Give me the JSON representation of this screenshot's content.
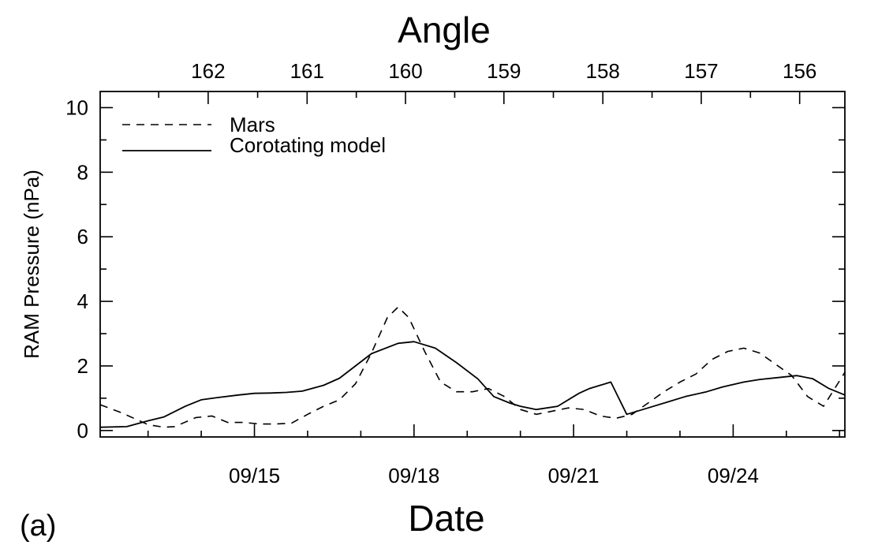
{
  "chart_data": {
    "type": "line",
    "panel_label": "(a)",
    "top_axis": {
      "title": "Angle",
      "ticks": [
        {
          "label": "162",
          "day": 14.13
        },
        {
          "label": "161",
          "day": 15.99
        },
        {
          "label": "160",
          "day": 17.84
        },
        {
          "label": "159",
          "day": 19.69
        },
        {
          "label": "158",
          "day": 21.55
        },
        {
          "label": "157",
          "day": 23.4
        },
        {
          "label": "156",
          "day": 25.25
        }
      ]
    },
    "xlabel": "Date",
    "xlim_day": [
      12.1,
      26.1
    ],
    "x_ticks": [
      {
        "label": "09/15",
        "day": 15
      },
      {
        "label": "09/18",
        "day": 18
      },
      {
        "label": "09/21",
        "day": 21
      },
      {
        "label": "09/24",
        "day": 24
      }
    ],
    "ylabel": "RAM Pressure (nPa)",
    "ylim": [
      -0.2,
      10.5
    ],
    "y_ticks": [
      "0",
      "2",
      "4",
      "6",
      "8",
      "10"
    ],
    "series": [
      {
        "name": "Mars",
        "style": "dashed",
        "day": [
          12.1,
          12.5,
          13.0,
          13.3,
          13.5,
          13.9,
          14.2,
          14.5,
          14.8,
          15.1,
          15.4,
          15.7,
          16.0,
          16.3,
          16.6,
          16.9,
          17.2,
          17.5,
          17.7,
          17.9,
          18.2,
          18.5,
          18.8,
          19.1,
          19.4,
          19.7,
          20.0,
          20.3,
          20.6,
          20.9,
          21.2,
          21.5,
          21.8,
          22.1,
          22.4,
          22.7,
          23.0,
          23.3,
          23.6,
          23.9,
          24.2,
          24.5,
          24.8,
          25.1,
          25.4,
          25.7,
          26.1
        ],
        "values": [
          0.8,
          0.55,
          0.18,
          0.1,
          0.12,
          0.4,
          0.45,
          0.25,
          0.25,
          0.2,
          0.2,
          0.23,
          0.5,
          0.75,
          0.95,
          1.45,
          2.4,
          3.5,
          3.82,
          3.5,
          2.45,
          1.5,
          1.2,
          1.2,
          1.3,
          1.05,
          0.65,
          0.5,
          0.6,
          0.7,
          0.65,
          0.45,
          0.38,
          0.5,
          0.85,
          1.2,
          1.5,
          1.75,
          2.2,
          2.45,
          2.55,
          2.4,
          2.05,
          1.7,
          1.05,
          0.75,
          1.8
        ]
      },
      {
        "name": "Corotating model",
        "style": "solid",
        "day": [
          12.1,
          12.6,
          13.0,
          13.3,
          13.7,
          14.0,
          14.3,
          14.7,
          15.0,
          15.3,
          15.6,
          15.9,
          16.3,
          16.6,
          16.9,
          17.2,
          17.7,
          18.0,
          18.4,
          18.8,
          19.2,
          19.5,
          19.8,
          20.0,
          20.3,
          20.7,
          21.1,
          21.3,
          21.7,
          22.0,
          22.4,
          22.8,
          23.1,
          23.5,
          23.8,
          24.2,
          24.5,
          24.9,
          25.2,
          25.5,
          25.8,
          26.1
        ],
        "values": [
          0.1,
          0.12,
          0.3,
          0.42,
          0.75,
          0.95,
          1.02,
          1.1,
          1.15,
          1.16,
          1.18,
          1.22,
          1.4,
          1.62,
          2.0,
          2.38,
          2.7,
          2.75,
          2.55,
          2.1,
          1.6,
          1.05,
          0.85,
          0.75,
          0.65,
          0.75,
          1.15,
          1.3,
          1.5,
          0.5,
          0.7,
          0.9,
          1.05,
          1.2,
          1.35,
          1.5,
          1.58,
          1.65,
          1.7,
          1.6,
          1.3,
          1.1
        ]
      }
    ],
    "legend": {
      "placement": "top-left"
    },
    "grid": false
  }
}
